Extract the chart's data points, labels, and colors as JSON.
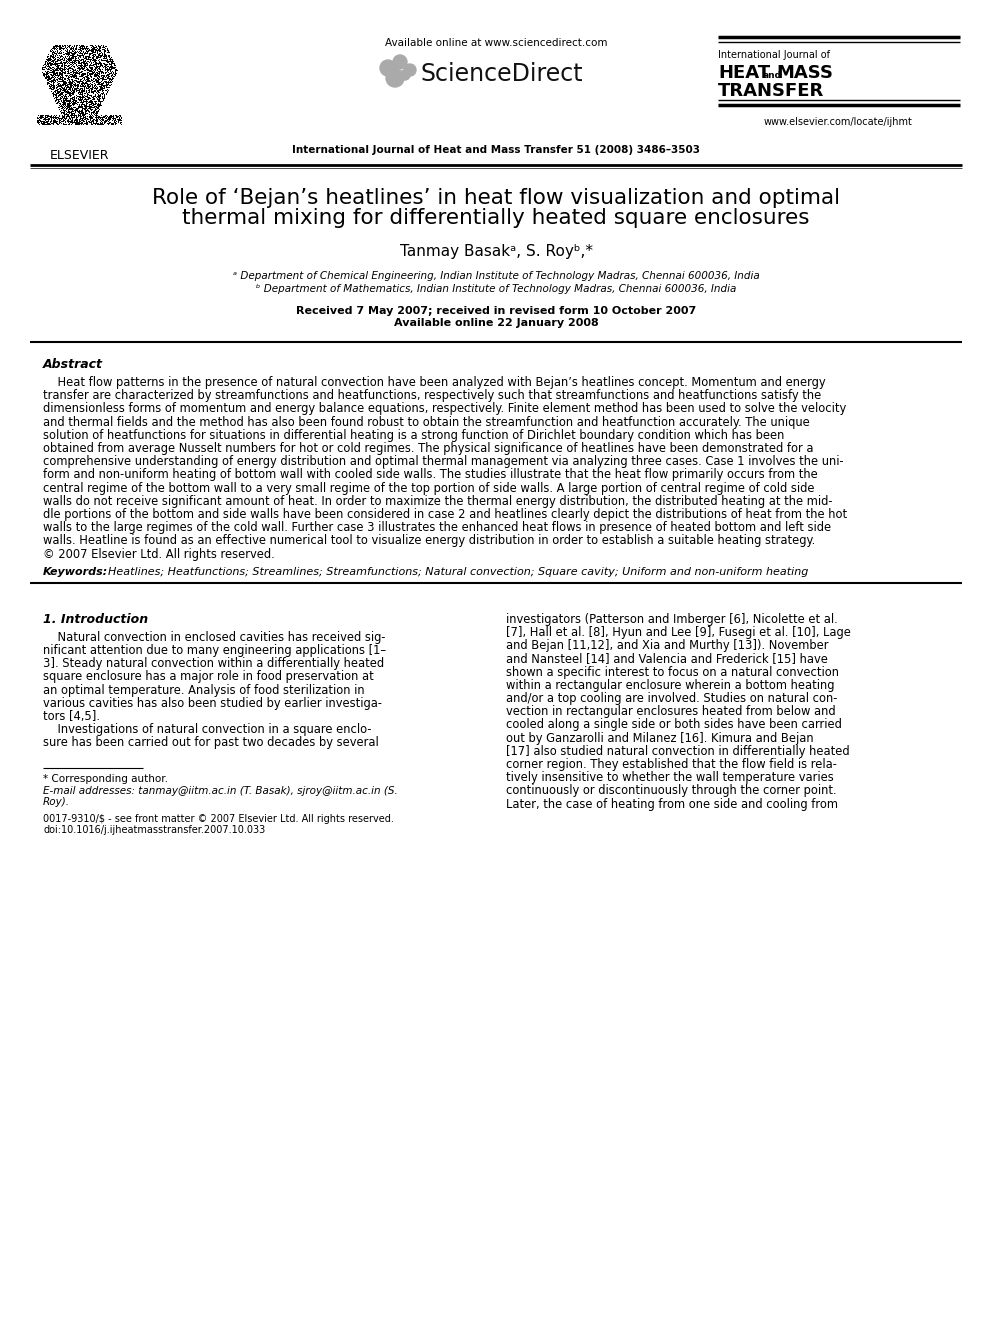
{
  "bg_color": "#ffffff",
  "title_text": "Role of ‘Bejan’s heatlines’ in heat flow visualization and optimal\nthermal mixing for differentially heated square enclosures",
  "authors_text": "Tanmay Basakᵃ, S. Royᵇ,*",
  "affil_a": "ᵃ Department of Chemical Engineering, Indian Institute of Technology Madras, Chennai 600036, India",
  "affil_b": "ᵇ Department of Mathematics, Indian Institute of Technology Madras, Chennai 600036, India",
  "received_line1": "Received 7 May 2007; received in revised form 10 October 2007",
  "received_line2": "Available online 22 January 2008",
  "journal_header": "International Journal of Heat and Mass Transfer 51 (2008) 3486–3503",
  "available_online": "Available online at www.sciencedirect.com",
  "sciencedirect_text": "ScienceDirect",
  "journal_name_line1": "International Journal of",
  "journal_name_line2_1": "HEAT",
  "journal_name_line2_and": "and",
  "journal_name_line2_2": "MASS",
  "journal_name_line3": "TRANSFER",
  "elsevier_text": "ELSEVIER",
  "www_text": "www.elsevier.com/locate/ijhmt",
  "abstract_title": "Abstract",
  "keywords_label": "Keywords:",
  "keywords_rest": "  Heatlines; Heatfunctions; Streamlines; Streamfunctions; Natural convection; Square cavity; Uniform and non-uniform heating",
  "section1_title": "1. Introduction",
  "footnote_star": "* Corresponding author.",
  "footnote_email": "E-mail addresses: tanmay@iitm.ac.in (T. Basak), sjroy@iitm.ac.in (S.",
  "footnote_email2": "Roy).",
  "copyright_text": "0017-9310/$ - see front matter © 2007 Elsevier Ltd. All rights reserved.",
  "doi_text": "doi:10.1016/j.ijheatmasstransfer.2007.10.033",
  "abstract_lines": [
    "    Heat flow patterns in the presence of natural convection have been analyzed with Bejan’s heatlines concept. Momentum and energy",
    "transfer are characterized by streamfunctions and heatfunctions, respectively such that streamfunctions and heatfunctions satisfy the",
    "dimensionless forms of momentum and energy balance equations, respectively. Finite element method has been used to solve the velocity",
    "and thermal fields and the method has also been found robust to obtain the streamfunction and heatfunction accurately. The unique",
    "solution of heatfunctions for situations in differential heating is a strong function of Dirichlet boundary condition which has been",
    "obtained from average Nusselt numbers for hot or cold regimes. The physical significance of heatlines have been demonstrated for a",
    "comprehensive understanding of energy distribution and optimal thermal management via analyzing three cases. Case 1 involves the uni-",
    "form and non-uniform heating of bottom wall with cooled side walls. The studies illustrate that the heat flow primarily occurs from the",
    "central regime of the bottom wall to a very small regime of the top portion of side walls. A large portion of central regime of cold side",
    "walls do not receive significant amount of heat. In order to maximize the thermal energy distribution, the distributed heating at the mid-",
    "dle portions of the bottom and side walls have been considered in case 2 and heatlines clearly depict the distributions of heat from the hot",
    "walls to the large regimes of the cold wall. Further case 3 illustrates the enhanced heat flows in presence of heated bottom and left side",
    "walls. Heatline is found as an effective numerical tool to visualize energy distribution in order to establish a suitable heating strategy.",
    "© 2007 Elsevier Ltd. All rights reserved."
  ],
  "left_col_lines": [
    "    Natural convection in enclosed cavities has received sig-",
    "nificant attention due to many engineering applications [1–",
    "3]. Steady natural convection within a differentially heated",
    "square enclosure has a major role in food preservation at",
    "an optimal temperature. Analysis of food sterilization in",
    "various cavities has also been studied by earlier investiga-",
    "tors [4,5].",
    "    Investigations of natural convection in a square enclo-",
    "sure has been carried out for past two decades by several"
  ],
  "right_col_lines": [
    "investigators (Patterson and Imberger [6], Nicolette et al.",
    "[7], Hall et al. [8], Hyun and Lee [9], Fusegi et al. [10], Lage",
    "and Bejan [11,12], and Xia and Murthy [13]). November",
    "and Nansteel [14] and Valencia and Frederick [15] have",
    "shown a specific interest to focus on a natural convection",
    "within a rectangular enclosure wherein a bottom heating",
    "and/or a top cooling are involved. Studies on natural con-",
    "vection in rectangular enclosures heated from below and",
    "cooled along a single side or both sides have been carried",
    "out by Ganzarolli and Milanez [16]. Kimura and Bejan",
    "[17] also studied natural convection in differentially heated",
    "corner region. They established that the flow field is rela-",
    "tively insensitive to whether the wall temperature varies",
    "continuously or discontinuously through the corner point.",
    "Later, the case of heating from one side and cooling from"
  ]
}
